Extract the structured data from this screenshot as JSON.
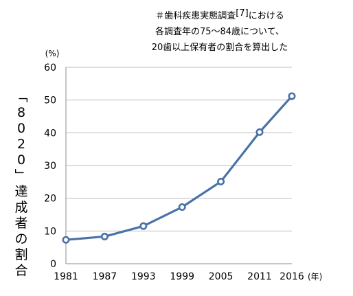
{
  "annotation": {
    "line1_prefix": "＃歯科疾患実態調査",
    "line1_ref": "[7]",
    "line1_suffix": "における",
    "line2": "各調査年の75〜84歳について、",
    "line3": "20歯以上保有者の割合を算出した"
  },
  "chart_data": {
    "type": "line",
    "title": "",
    "xlabel": "",
    "ylabel": "「8020」達成者の割合",
    "y_unit": "(%)",
    "x_unit": "(年)",
    "x_ticks": [
      "1981",
      "1987",
      "1993",
      "1999",
      "2005",
      "2011",
      "2016"
    ],
    "y_ticks": [
      "0",
      "10",
      "20",
      "30",
      "40",
      "50",
      "60"
    ],
    "ylim": [
      0,
      60
    ],
    "grid": true,
    "legend": "none",
    "line_color": "#4a72a8",
    "series": [
      {
        "x": [
          1981,
          1987,
          1993,
          1999,
          2005,
          2011,
          2016
        ],
        "y": [
          7.3,
          8.3,
          11.5,
          17.3,
          25.1,
          40.2,
          51.2
        ]
      }
    ]
  }
}
